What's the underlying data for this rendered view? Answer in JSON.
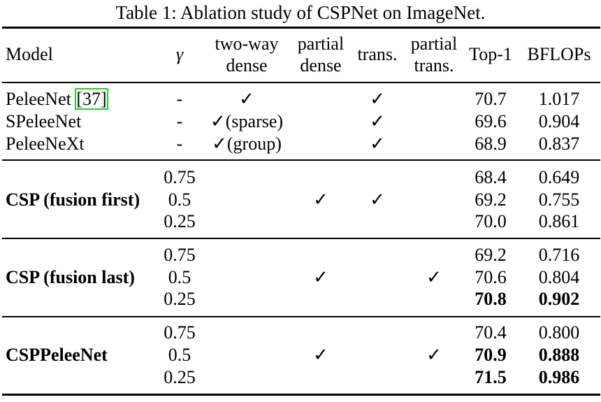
{
  "caption": "Table 1: Ablation study of CSPNet on ImageNet.",
  "header": {
    "model": "Model",
    "gamma": "γ",
    "two_way_1": "two-way",
    "two_way_2": "dense",
    "partial_dense_1": "partial",
    "partial_dense_2": "dense",
    "trans": "trans.",
    "partial_trans_1": "partial",
    "partial_trans_2": "trans.",
    "top1": "Top-1",
    "bflops": "BFLOPs"
  },
  "groups": [
    {
      "model": "PeleeNet",
      "cite": "[37]",
      "rows": [
        {
          "gamma": "-",
          "two_way": "✓",
          "trans": "✓",
          "top1": "70.7",
          "bflops": "1.017"
        }
      ]
    },
    {
      "rows": [
        {
          "model": "SPeleeNet",
          "gamma": "-",
          "two_way": "✓(sparse)",
          "trans": "✓",
          "top1": "69.6",
          "bflops": "0.904"
        },
        {
          "model": "PeleeNeXt",
          "gamma": "-",
          "two_way": "✓(group)",
          "trans": "✓",
          "top1": "68.9",
          "bflops": "0.837"
        }
      ]
    },
    {
      "model": "CSP (fusion first)",
      "partial_dense": "✓",
      "trans": "✓",
      "rows": [
        {
          "gamma": "0.75",
          "top1": "68.4",
          "bflops": "0.649"
        },
        {
          "gamma": "0.5",
          "top1": "69.2",
          "bflops": "0.755"
        },
        {
          "gamma": "0.25",
          "top1": "70.0",
          "bflops": "0.861"
        }
      ]
    },
    {
      "model": "CSP (fusion last)",
      "partial_dense": "✓",
      "partial_trans": "✓",
      "rows": [
        {
          "gamma": "0.75",
          "top1": "69.2",
          "bflops": "0.716"
        },
        {
          "gamma": "0.5",
          "top1": "70.6",
          "bflops": "0.804"
        },
        {
          "gamma": "0.25",
          "top1": "70.8",
          "bflops": "0.902"
        }
      ]
    },
    {
      "model": "CSPPeleeNet",
      "partial_dense": "✓",
      "partial_trans": "✓",
      "rows": [
        {
          "gamma": "0.75",
          "top1": "70.4",
          "bflops": "0.800"
        },
        {
          "gamma": "0.5",
          "top1": "70.9",
          "bflops": "0.888"
        },
        {
          "gamma": "0.25",
          "top1": "71.5",
          "bflops": "0.986"
        }
      ]
    }
  ],
  "colors": {
    "citation_box": "#22d322",
    "text": "#000000"
  }
}
